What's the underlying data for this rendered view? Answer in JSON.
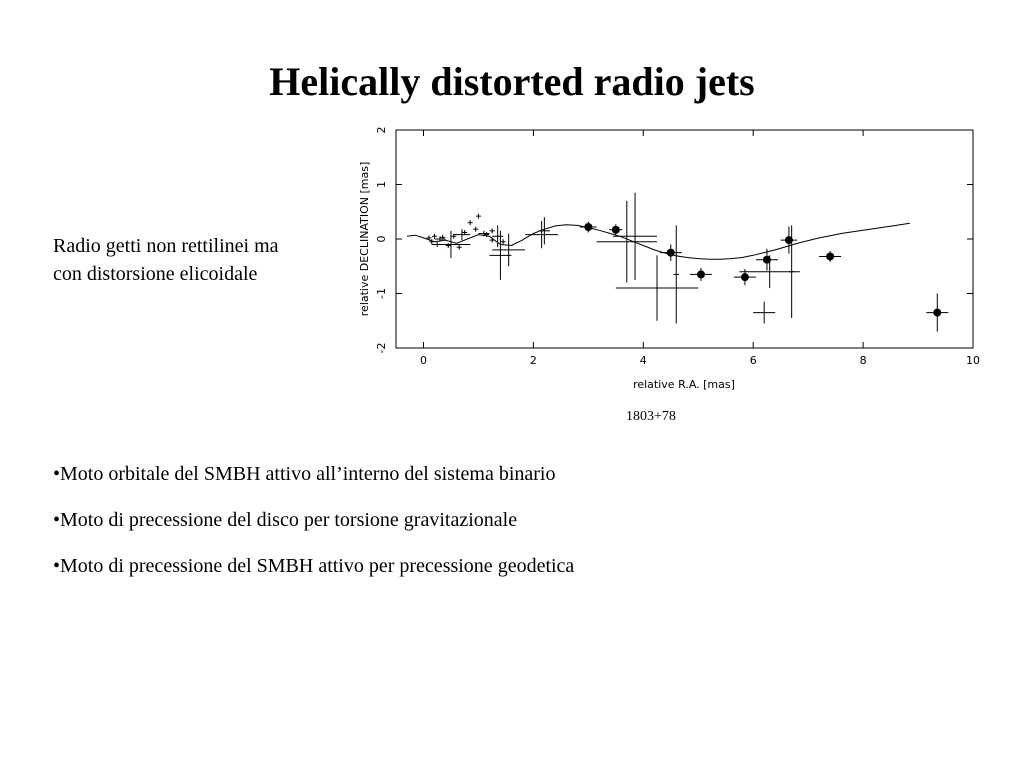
{
  "slide": {
    "title": "Helically distorted radio jets",
    "side_text": [
      "Radio getti non rettilinei ma",
      "con distorsione elicoidale"
    ],
    "caption": "1803+78",
    "bullets": [
      "•Moto orbitale del SMBH attivo all’interno del sistema binario",
      "•Moto di precessione del disco per torsione gravitazionale",
      "•Moto di precessione del SMBH attivo per precessione geodetica"
    ]
  },
  "chart_data": {
    "type": "scatter",
    "xlabel": "relative R.A. [mas]",
    "ylabel": "relative DECLINATION [mas]",
    "xlim": [
      -0.5,
      10
    ],
    "ylim": [
      -2,
      2
    ],
    "xticks": [
      0,
      2,
      4,
      6,
      8,
      10
    ],
    "yticks": [
      -2,
      -1,
      0,
      1,
      2
    ],
    "grid": false,
    "legend": "none",
    "series": [
      {
        "marker": "filled-circle",
        "points": [
          {
            "x": 3.0,
            "y": 0.22,
            "xerr": 0.15,
            "yerr": 0.1
          },
          {
            "x": 3.5,
            "y": 0.17,
            "xerr": 0.12,
            "yerr": 0.1
          },
          {
            "x": 4.5,
            "y": -0.25,
            "xerr": 0.2,
            "yerr": 0.15
          },
          {
            "x": 5.05,
            "y": -0.65,
            "xerr": 0.2,
            "yerr": 0.12
          },
          {
            "x": 5.85,
            "y": -0.7,
            "xerr": 0.2,
            "yerr": 0.15
          },
          {
            "x": 6.25,
            "y": -0.38,
            "xerr": 0.2,
            "yerr": 0.2
          },
          {
            "x": 6.65,
            "y": -0.02,
            "xerr": 0.15,
            "yerr": 0.25
          },
          {
            "x": 7.4,
            "y": -0.32,
            "xerr": 0.2,
            "yerr": 0.1
          },
          {
            "x": 9.35,
            "y": -1.35,
            "xerr": 0.2,
            "yerr": 0.35
          }
        ]
      },
      {
        "marker": "error-cross",
        "points": [
          {
            "x": 0.3,
            "y": 0.0,
            "xerr": 0.1,
            "yerr": 0.05
          },
          {
            "x": 0.5,
            "y": -0.1,
            "xerr": 0.35,
            "yerr": 0.25
          },
          {
            "x": 0.7,
            "y": 0.08,
            "xerr": 0.15,
            "yerr": 0.1
          },
          {
            "x": 1.1,
            "y": 0.1,
            "xerr": 0.1,
            "yerr": 0.05
          },
          {
            "x": 1.35,
            "y": 0.05,
            "xerr": 0.1,
            "yerr": 0.2
          },
          {
            "x": 1.4,
            "y": -0.3,
            "xerr": 0.2,
            "yerr": 0.45
          },
          {
            "x": 1.55,
            "y": -0.2,
            "xerr": 0.3,
            "yerr": 0.3
          },
          {
            "x": 2.15,
            "y": 0.08,
            "xerr": 0.3,
            "yerr": 0.25
          },
          {
            "x": 2.2,
            "y": 0.15,
            "xerr": 0.1,
            "yerr": 0.25
          },
          {
            "x": 3.7,
            "y": -0.05,
            "xerr": 0.55,
            "yerr": 0.75
          },
          {
            "x": 3.85,
            "y": 0.05,
            "xerr": 0.4,
            "yerr": 0.8
          },
          {
            "x": 4.25,
            "y": -0.9,
            "xerr": 0.75,
            "yerr": 0.6
          },
          {
            "x": 4.6,
            "y": -0.65,
            "xerr": 0.05,
            "yerr": 0.9
          },
          {
            "x": 6.3,
            "y": -0.6,
            "xerr": 0.55,
            "yerr": 0.3
          },
          {
            "x": 6.7,
            "y": -0.6,
            "xerr": 0.05,
            "yerr": 0.85
          },
          {
            "x": 6.2,
            "y": -1.35,
            "xerr": 0.2,
            "yerr": 0.2
          }
        ]
      },
      {
        "marker": "small-plus",
        "points": [
          {
            "x": 0.1,
            "y": 0.02
          },
          {
            "x": 0.15,
            "y": -0.05
          },
          {
            "x": 0.2,
            "y": 0.05
          },
          {
            "x": 0.25,
            "y": -0.1
          },
          {
            "x": 0.35,
            "y": 0.03
          },
          {
            "x": 0.45,
            "y": -0.12
          },
          {
            "x": 0.55,
            "y": 0.05
          },
          {
            "x": 0.65,
            "y": -0.15
          },
          {
            "x": 0.75,
            "y": 0.12
          },
          {
            "x": 0.85,
            "y": 0.3
          },
          {
            "x": 0.95,
            "y": 0.18
          },
          {
            "x": 1.0,
            "y": 0.42
          },
          {
            "x": 1.15,
            "y": 0.08
          },
          {
            "x": 1.25,
            "y": 0.15
          },
          {
            "x": 1.45,
            "y": -0.05
          },
          {
            "x": 1.25,
            "y": -0.02
          }
        ]
      }
    ],
    "curve": [
      [
        -0.3,
        0.05
      ],
      [
        -0.15,
        0.07
      ],
      [
        0.0,
        0.02
      ],
      [
        0.2,
        -0.05
      ],
      [
        0.4,
        -0.02
      ],
      [
        0.6,
        -0.08
      ],
      [
        0.8,
        0.0
      ],
      [
        1.0,
        0.08
      ],
      [
        1.2,
        0.05
      ],
      [
        1.4,
        -0.1
      ],
      [
        1.6,
        -0.12
      ],
      [
        1.8,
        -0.02
      ],
      [
        2.0,
        0.1
      ],
      [
        2.2,
        0.18
      ],
      [
        2.4,
        0.24
      ],
      [
        2.6,
        0.26
      ],
      [
        2.8,
        0.25
      ],
      [
        3.0,
        0.21
      ],
      [
        3.2,
        0.16
      ],
      [
        3.4,
        0.1
      ],
      [
        3.6,
        0.04
      ],
      [
        3.8,
        -0.04
      ],
      [
        4.0,
        -0.12
      ],
      [
        4.2,
        -0.2
      ],
      [
        4.4,
        -0.26
      ],
      [
        4.6,
        -0.31
      ],
      [
        4.8,
        -0.34
      ],
      [
        5.0,
        -0.36
      ],
      [
        5.2,
        -0.37
      ],
      [
        5.4,
        -0.37
      ],
      [
        5.6,
        -0.36
      ],
      [
        5.8,
        -0.34
      ],
      [
        6.0,
        -0.3
      ],
      [
        6.2,
        -0.25
      ],
      [
        6.4,
        -0.2
      ],
      [
        6.6,
        -0.14
      ],
      [
        6.8,
        -0.08
      ],
      [
        7.0,
        -0.03
      ],
      [
        7.2,
        0.02
      ],
      [
        7.4,
        0.06
      ],
      [
        7.6,
        0.1
      ],
      [
        7.8,
        0.13
      ],
      [
        8.0,
        0.16
      ],
      [
        8.2,
        0.19
      ],
      [
        8.4,
        0.22
      ],
      [
        8.6,
        0.25
      ],
      [
        8.85,
        0.29
      ]
    ]
  }
}
